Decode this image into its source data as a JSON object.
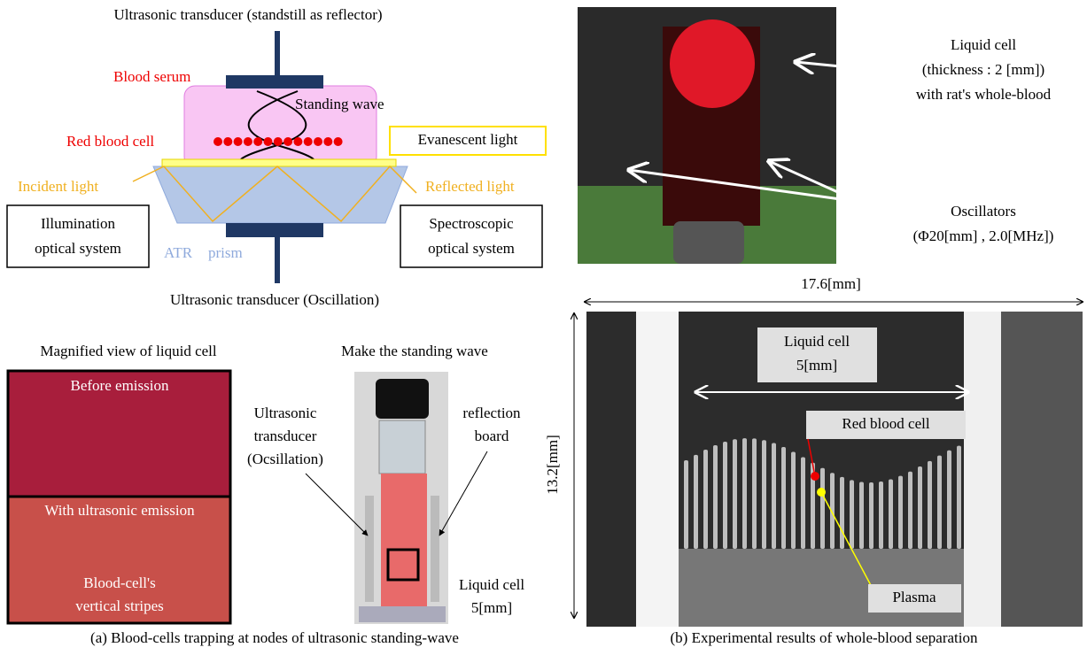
{
  "panel_a": {
    "diagram": {
      "top_transducer": "Ultrasonic transducer (standstill as reflector)",
      "blood_serum": "Blood serum",
      "standing_wave": "Standing wave",
      "red_blood_cell": "Red blood cell",
      "evanescent_light": "Evanescent light",
      "incident_light": "Incident light",
      "reflected_light": "Reflected light",
      "illumination": [
        "Illumination",
        "optical system"
      ],
      "spectroscopic": [
        "Spectroscopic",
        "optical system"
      ],
      "atr": "ATR",
      "prism": "prism",
      "bottom_transducer": "Ultrasonic transducer (Oscillation)"
    },
    "magnified": {
      "title": "Magnified view of liquid cell",
      "before": "Before emission",
      "with": "With ultrasonic emission",
      "stripes": [
        "Blood-cell's",
        "vertical stripes"
      ]
    },
    "vial": {
      "title": "Make  the standing wave",
      "transducer": [
        "Ultrasonic",
        "transducer",
        "(Ocsillation)"
      ],
      "reflection": [
        "reflection",
        "board"
      ],
      "liquid_cell": [
        "Liquid cell",
        "5[mm]"
      ]
    },
    "caption": "(a) Blood-cells trapping at nodes of ultrasonic standing-wave"
  },
  "panel_b": {
    "photo": {
      "liquid_cell": [
        "Liquid cell",
        "(thickness : 2 [mm])",
        "with rat's whole-blood"
      ],
      "oscillators": [
        "Oscillators",
        "(Φ20[mm] , 2.0[MHz])"
      ]
    },
    "image": {
      "width": "17.6[mm]",
      "height": "13.2[mm]",
      "liquid_cell": [
        "Liquid cell",
        "5[mm]"
      ],
      "red_blood_cell": "Red blood cell",
      "plasma": "Plasma"
    },
    "caption": "(b) Experimental results of whole-blood separation"
  }
}
